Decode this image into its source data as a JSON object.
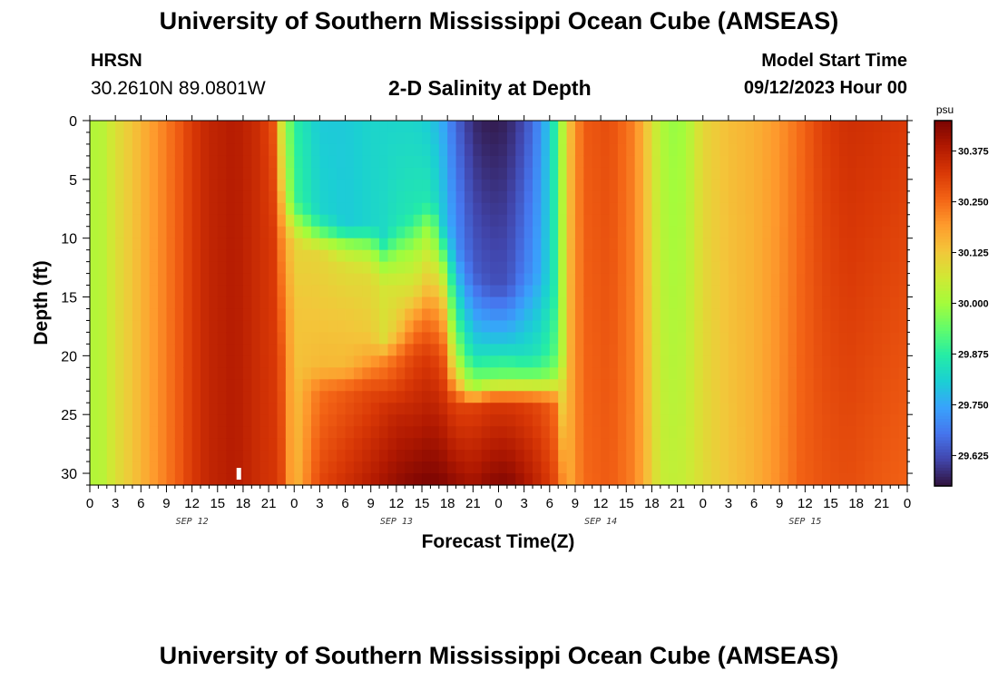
{
  "header": {
    "title": "University of Southern Mississippi Ocean Cube (AMSEAS)",
    "station_code": "HRSN",
    "station_coords": "30.2610N  89.0801W",
    "subtitle": "2-D Salinity at Depth",
    "model_start_label": "Model Start Time",
    "model_start_value": "09/12/2023 Hour 00"
  },
  "footer": {
    "title": "University of Southern Mississippi Ocean Cube (AMSEAS)"
  },
  "chart_data": {
    "type": "heatmap",
    "title": "2-D Salinity at Depth",
    "xlabel": "Forecast Time(Z)",
    "ylabel": "Depth (ft)",
    "x_hours_range": [
      0,
      96
    ],
    "x_tick_labels": [
      "0",
      "3",
      "6",
      "9",
      "12",
      "15",
      "18",
      "21",
      "0",
      "3",
      "6",
      "9",
      "12",
      "15",
      "18",
      "21",
      "0",
      "3",
      "6",
      "9",
      "12",
      "15",
      "18",
      "21",
      "0",
      "3",
      "6",
      "9",
      "12",
      "15",
      "18",
      "21",
      "0"
    ],
    "date_labels": [
      {
        "label": "SEP 12",
        "hour": 12
      },
      {
        "label": "SEP 13",
        "hour": 36
      },
      {
        "label": "SEP 14",
        "hour": 60
      },
      {
        "label": "SEP 15",
        "hour": 84
      }
    ],
    "y_range": [
      0,
      31
    ],
    "y_tick_labels": [
      "0",
      "5",
      "10",
      "15",
      "20",
      "25",
      "30"
    ],
    "y_tick_values": [
      0,
      5,
      10,
      15,
      20,
      25,
      30
    ],
    "colorbar": {
      "unit": "psu",
      "min": 29.55,
      "max": 30.45,
      "tick_values": [
        30.375,
        30.25,
        30.125,
        30.0,
        29.875,
        29.75,
        29.625
      ],
      "tick_labels": [
        "30.375",
        "30.250",
        "30.125",
        "30.000",
        "29.875",
        "29.750",
        "29.625"
      ],
      "colors": [
        "#30123b",
        "#4145ab",
        "#4675ed",
        "#39a2fc",
        "#1bcfd4",
        "#24eca6",
        "#61fc6c",
        "#a4fc3b",
        "#d1e834",
        "#f3c63a",
        "#fe9b2d",
        "#f36315",
        "#d93806",
        "#b11901",
        "#7a0402"
      ]
    },
    "marker": {
      "hour": 17.5,
      "depth": 30
    },
    "profiles": [
      {
        "hour": 0,
        "values": [
          [
            0,
            30.02
          ]
        ]
      },
      {
        "hour": 1.5,
        "values": [
          [
            0,
            30.03
          ]
        ]
      },
      {
        "hour": 3,
        "values": [
          [
            0,
            30.08
          ]
        ]
      },
      {
        "hour": 5,
        "values": [
          [
            0,
            30.13
          ]
        ]
      },
      {
        "hour": 7,
        "values": [
          [
            0,
            30.18
          ]
        ]
      },
      {
        "hour": 9,
        "values": [
          [
            0,
            30.23
          ]
        ]
      },
      {
        "hour": 10.5,
        "values": [
          [
            0,
            30.27
          ]
        ]
      },
      {
        "hour": 12,
        "values": [
          [
            0,
            30.32
          ]
        ]
      },
      {
        "hour": 14,
        "values": [
          [
            0,
            30.36
          ]
        ]
      },
      {
        "hour": 17,
        "values": [
          [
            0,
            30.38
          ]
        ]
      },
      {
        "hour": 20,
        "values": [
          [
            0,
            30.34
          ]
        ]
      },
      {
        "hour": 21.5,
        "values": [
          [
            0,
            30.28
          ],
          [
            10,
            30.32
          ],
          [
            31,
            30.33
          ]
        ]
      },
      {
        "hour": 22.5,
        "values": [
          [
            0,
            30.07
          ],
          [
            5,
            30.12
          ],
          [
            10,
            30.22
          ],
          [
            20,
            30.28
          ],
          [
            31,
            30.3
          ]
        ]
      },
      {
        "hour": 24,
        "values": [
          [
            0,
            29.88
          ],
          [
            7,
            29.9
          ],
          [
            9,
            30.04
          ],
          [
            10.5,
            30.1
          ],
          [
            16,
            30.13
          ],
          [
            31,
            30.14
          ]
        ]
      },
      {
        "hour": 27,
        "values": [
          [
            0,
            29.8
          ],
          [
            8,
            29.82
          ],
          [
            10,
            29.98
          ],
          [
            11,
            30.1
          ],
          [
            21,
            30.15
          ],
          [
            23,
            30.24
          ],
          [
            31,
            30.3
          ]
        ]
      },
      {
        "hour": 30,
        "values": [
          [
            0,
            29.8
          ],
          [
            9,
            29.8
          ],
          [
            10.5,
            29.98
          ],
          [
            12,
            30.08
          ],
          [
            16,
            30.12
          ],
          [
            21,
            30.15
          ],
          [
            23,
            30.27
          ],
          [
            31,
            30.34
          ]
        ]
      },
      {
        "hour": 33,
        "values": [
          [
            0,
            29.82
          ],
          [
            9,
            29.82
          ],
          [
            11,
            30.0
          ],
          [
            13,
            30.09
          ],
          [
            18,
            30.12
          ],
          [
            20,
            30.17
          ],
          [
            23,
            30.3
          ],
          [
            31,
            30.38
          ]
        ]
      },
      {
        "hour": 34.5,
        "values": [
          [
            0,
            29.82
          ],
          [
            10,
            29.83
          ],
          [
            12,
            29.98
          ],
          [
            14,
            30.07
          ],
          [
            19,
            30.09
          ],
          [
            20,
            30.2
          ],
          [
            24,
            30.33
          ],
          [
            31,
            30.4
          ]
        ]
      },
      {
        "hour": 36,
        "values": [
          [
            0,
            29.82
          ],
          [
            9,
            29.85
          ],
          [
            11.5,
            29.99
          ],
          [
            14,
            30.07
          ],
          [
            18,
            30.12
          ],
          [
            20,
            30.24
          ],
          [
            25,
            30.36
          ],
          [
            31,
            30.42
          ]
        ]
      },
      {
        "hour": 38,
        "values": [
          [
            0,
            29.82
          ],
          [
            8,
            29.86
          ],
          [
            11,
            30.0
          ],
          [
            15,
            30.1
          ],
          [
            17,
            30.2
          ],
          [
            20,
            30.3
          ],
          [
            31,
            30.44
          ]
        ]
      },
      {
        "hour": 40,
        "values": [
          [
            0,
            29.8
          ],
          [
            7,
            29.86
          ],
          [
            9,
            30.0
          ],
          [
            14,
            30.14
          ],
          [
            16,
            30.22
          ],
          [
            20,
            30.32
          ],
          [
            31,
            30.45
          ]
        ]
      },
      {
        "hour": 41.5,
        "values": [
          [
            0,
            29.75
          ],
          [
            9,
            29.8
          ],
          [
            13,
            30.02
          ],
          [
            16,
            30.14
          ],
          [
            20,
            30.27
          ],
          [
            25,
            30.36
          ],
          [
            31,
            30.44
          ]
        ]
      },
      {
        "hour": 43,
        "values": [
          [
            0,
            29.66
          ],
          [
            11,
            29.72
          ],
          [
            17,
            29.9
          ],
          [
            21,
            30.05
          ],
          [
            24,
            30.3
          ],
          [
            31,
            30.42
          ]
        ]
      },
      {
        "hour": 45,
        "values": [
          [
            0,
            29.58
          ],
          [
            13,
            29.65
          ],
          [
            20,
            29.84
          ],
          [
            23,
            30.02
          ],
          [
            24,
            30.3
          ],
          [
            31,
            30.4
          ]
        ]
      },
      {
        "hour": 47,
        "values": [
          [
            0,
            29.56
          ],
          [
            14,
            29.63
          ],
          [
            19,
            29.8
          ],
          [
            22,
            29.96
          ],
          [
            24,
            30.32
          ],
          [
            31,
            30.43
          ]
        ]
      },
      {
        "hour": 49,
        "values": [
          [
            0,
            29.57
          ],
          [
            14,
            29.63
          ],
          [
            19,
            29.8
          ],
          [
            22,
            29.97
          ],
          [
            24,
            30.32
          ],
          [
            31,
            30.44
          ]
        ]
      },
      {
        "hour": 51,
        "values": [
          [
            0,
            29.62
          ],
          [
            13,
            29.69
          ],
          [
            20,
            29.84
          ],
          [
            22,
            29.97
          ],
          [
            24,
            30.31
          ],
          [
            31,
            30.4
          ]
        ]
      },
      {
        "hour": 53,
        "values": [
          [
            0,
            29.72
          ],
          [
            13,
            29.76
          ],
          [
            20,
            29.86
          ],
          [
            22,
            29.97
          ],
          [
            24,
            30.29
          ],
          [
            31,
            30.35
          ]
        ]
      },
      {
        "hour": 54.5,
        "values": [
          [
            0,
            29.86
          ],
          [
            14,
            29.86
          ],
          [
            20,
            29.92
          ],
          [
            22,
            30.0
          ],
          [
            24,
            30.25
          ],
          [
            31,
            30.3
          ]
        ]
      },
      {
        "hour": 55.5,
        "values": [
          [
            0,
            30.02
          ],
          [
            20,
            30.03
          ],
          [
            23,
            30.1
          ],
          [
            31,
            30.22
          ]
        ]
      },
      {
        "hour": 56.5,
        "values": [
          [
            0,
            30.15
          ],
          [
            31,
            30.18
          ]
        ]
      },
      {
        "hour": 58,
        "values": [
          [
            0,
            30.27
          ],
          [
            31,
            30.25
          ]
        ]
      },
      {
        "hour": 61,
        "values": [
          [
            0,
            30.29
          ],
          [
            31,
            30.27
          ]
        ]
      },
      {
        "hour": 64,
        "values": [
          [
            0,
            30.22
          ],
          [
            31,
            30.22
          ]
        ]
      },
      {
        "hour": 65.5,
        "values": [
          [
            0,
            30.12
          ],
          [
            31,
            30.14
          ]
        ]
      },
      {
        "hour": 67,
        "values": [
          [
            0,
            30.02
          ],
          [
            31,
            30.05
          ]
        ]
      },
      {
        "hour": 69,
        "values": [
          [
            0,
            29.98
          ],
          [
            31,
            30.04
          ]
        ]
      },
      {
        "hour": 70.5,
        "values": [
          [
            0,
            30.03
          ],
          [
            31,
            30.06
          ]
        ]
      },
      {
        "hour": 72,
        "values": [
          [
            0,
            30.1
          ],
          [
            31,
            30.09
          ]
        ]
      },
      {
        "hour": 75,
        "values": [
          [
            0,
            30.14
          ],
          [
            31,
            30.13
          ]
        ]
      },
      {
        "hour": 78,
        "values": [
          [
            0,
            30.16
          ],
          [
            31,
            30.16
          ]
        ]
      },
      {
        "hour": 81,
        "values": [
          [
            0,
            30.2
          ],
          [
            31,
            30.21
          ]
        ]
      },
      {
        "hour": 83.5,
        "values": [
          [
            0,
            30.25
          ],
          [
            31,
            30.26
          ]
        ]
      },
      {
        "hour": 86,
        "values": [
          [
            0,
            30.31
          ],
          [
            31,
            30.28
          ]
        ]
      },
      {
        "hour": 89,
        "values": [
          [
            0,
            30.34
          ],
          [
            31,
            30.29
          ]
        ]
      },
      {
        "hour": 93,
        "values": [
          [
            0,
            30.33
          ],
          [
            31,
            30.27
          ]
        ]
      },
      {
        "hour": 96,
        "values": [
          [
            0,
            30.32
          ],
          [
            31,
            30.26
          ]
        ]
      }
    ]
  }
}
